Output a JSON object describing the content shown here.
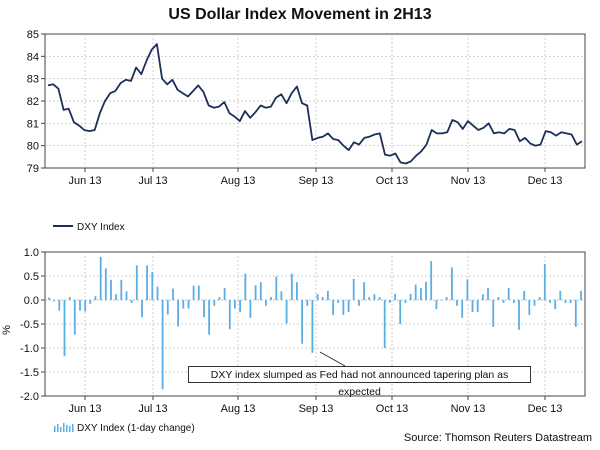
{
  "chart_data": [
    {
      "type": "line",
      "title": "US Dollar Index Movement in 2H13",
      "xlabel": "",
      "ylabel": "",
      "ylim": [
        79,
        85
      ],
      "yticks": [
        "79",
        "80",
        "81",
        "82",
        "83",
        "84",
        "85"
      ],
      "xticks": [
        "Jun 13",
        "Jul 13",
        "Aug 13",
        "Sep 13",
        "Oct 13",
        "Nov 13",
        "Dec 13"
      ],
      "legend": "DXY Index",
      "series": [
        {
          "name": "DXY Index",
          "color": "#1c2f59",
          "values": [
            82.7,
            82.75,
            82.55,
            81.6,
            81.65,
            81.05,
            80.9,
            80.7,
            80.65,
            80.7,
            81.45,
            82.0,
            82.35,
            82.45,
            82.8,
            82.95,
            82.9,
            83.5,
            83.2,
            83.8,
            84.3,
            84.55,
            83.0,
            82.75,
            82.95,
            82.5,
            82.35,
            82.2,
            82.45,
            82.7,
            82.4,
            81.8,
            81.7,
            81.75,
            81.95,
            81.45,
            81.3,
            81.1,
            81.55,
            81.25,
            81.5,
            81.8,
            81.7,
            81.75,
            82.15,
            82.3,
            81.9,
            82.35,
            82.65,
            81.9,
            81.8,
            80.25,
            80.35,
            80.4,
            80.55,
            80.3,
            80.25,
            80.0,
            79.8,
            80.15,
            80.05,
            80.35,
            80.4,
            80.5,
            80.55,
            79.6,
            79.55,
            79.65,
            79.25,
            79.2,
            79.3,
            79.55,
            79.75,
            80.05,
            80.7,
            80.55,
            80.55,
            80.6,
            81.15,
            81.05,
            80.75,
            81.1,
            80.9,
            80.7,
            80.8,
            81.0,
            80.55,
            80.6,
            80.55,
            80.75,
            80.7,
            80.2,
            80.35,
            80.1,
            80.0,
            80.05,
            80.65,
            80.6,
            80.45,
            80.6,
            80.55,
            80.5,
            80.05,
            80.2
          ]
        }
      ]
    },
    {
      "type": "bar",
      "title": "",
      "xlabel": "",
      "ylabel": "%",
      "ylim": [
        -2.0,
        1.0
      ],
      "yticks": [
        "-2.0",
        "-1.5",
        "-1.0",
        "-0.5",
        "0.0",
        "0.5",
        "1.0"
      ],
      "xticks": [
        "Jun 13",
        "Jul 13",
        "Aug 13",
        "Sep 13",
        "Oct 13",
        "Nov 13",
        "Dec 13"
      ],
      "legend": "DXY Index (1-day change)",
      "annotation": "DXY index slumped as Fed had not announced tapering plan as expected",
      "series": [
        {
          "name": "DXY Index (1-day change)",
          "color": "#5aaee6",
          "values": [
            0.05,
            -0.03,
            -0.22,
            -1.17,
            0.06,
            -0.72,
            -0.22,
            -0.24,
            -0.08,
            0.08,
            0.9,
            0.66,
            0.42,
            0.12,
            0.42,
            0.18,
            -0.06,
            0.72,
            -0.36,
            0.72,
            0.58,
            0.28,
            -1.86,
            -0.3,
            0.24,
            -0.55,
            -0.18,
            -0.18,
            0.3,
            0.3,
            -0.36,
            -0.72,
            -0.12,
            0.06,
            0.25,
            -0.61,
            -0.18,
            -0.25,
            0.55,
            -0.37,
            0.31,
            0.37,
            -0.12,
            0.06,
            0.49,
            0.18,
            -0.49,
            0.55,
            0.37,
            -0.91,
            -0.12,
            -1.1,
            0.12,
            0.06,
            0.19,
            -0.31,
            -0.06,
            -0.31,
            -0.25,
            0.44,
            -0.12,
            0.37,
            0.06,
            0.12,
            0.06,
            -1.0,
            -0.06,
            0.13,
            -0.5,
            -0.06,
            0.13,
            0.32,
            0.25,
            0.38,
            0.81,
            -0.19,
            0.0,
            0.06,
            0.68,
            -0.12,
            -0.37,
            0.43,
            -0.25,
            -0.25,
            0.12,
            0.25,
            -0.56,
            0.06,
            -0.06,
            0.25,
            -0.06,
            -0.62,
            0.19,
            -0.31,
            -0.12,
            0.06,
            0.75,
            -0.06,
            -0.19,
            0.19,
            -0.06,
            -0.06,
            -0.56,
            0.19
          ]
        }
      ]
    }
  ],
  "footer": {
    "source": "Source: Thomson Reuters Datastream"
  }
}
